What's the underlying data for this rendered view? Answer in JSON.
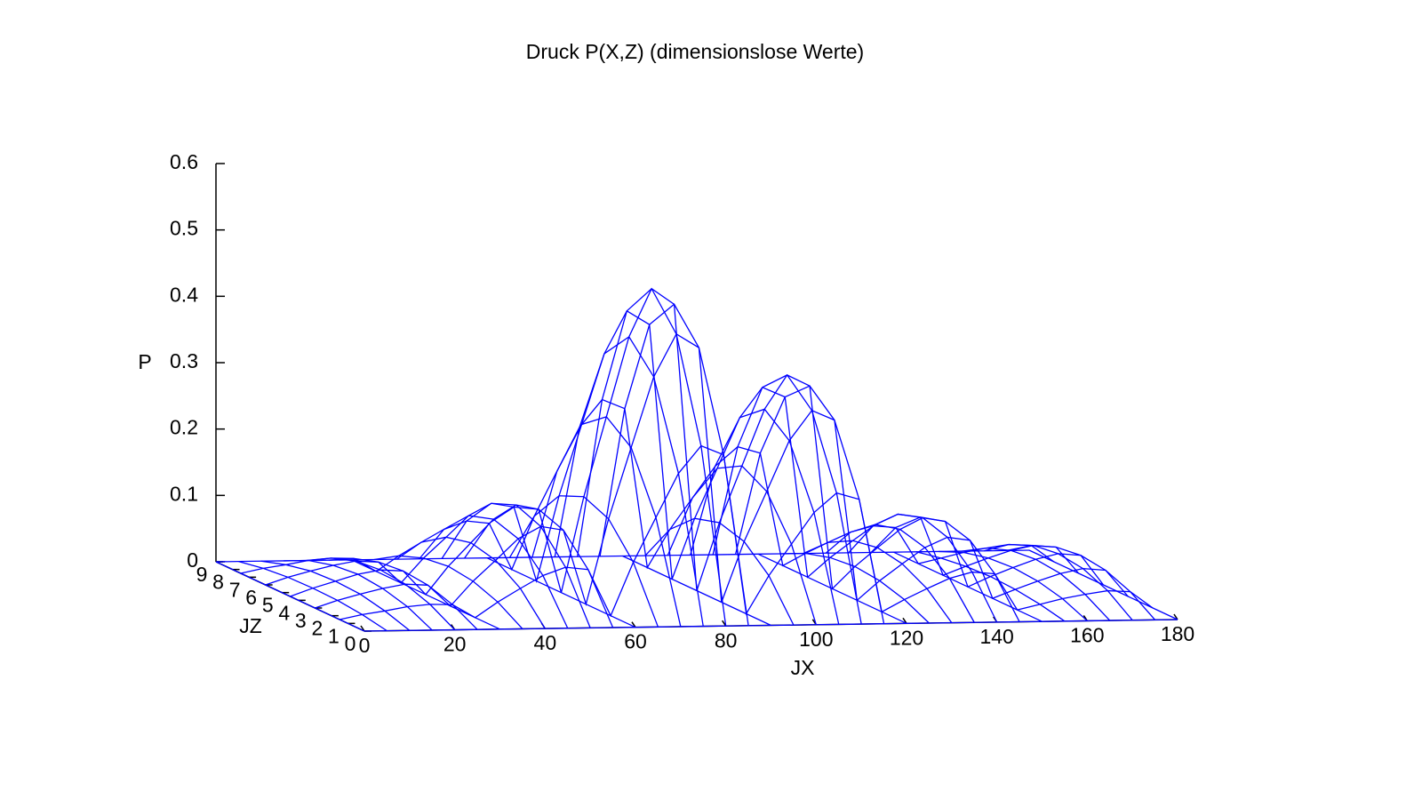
{
  "chart_data": {
    "type": "surface",
    "title": "Druck P(X,Z) (dimensionslose Werte)",
    "xlabel": "JX",
    "ylabel": "P",
    "zlabel": "JZ",
    "color": "#0000ff",
    "xlim": [
      0,
      180
    ],
    "ylim": [
      0,
      0.6
    ],
    "zlim": [
      0,
      9
    ],
    "xticks": [
      0,
      20,
      40,
      60,
      80,
      100,
      120,
      140,
      160,
      180
    ],
    "yticks": [
      0,
      0.1,
      0.2,
      0.3,
      0.4,
      0.5,
      0.6
    ],
    "zticks": [
      0,
      1,
      2,
      3,
      4,
      5,
      6,
      7,
      8,
      9
    ],
    "x": [
      0,
      5,
      10,
      15,
      20,
      25,
      30,
      35,
      40,
      45,
      50,
      55,
      60,
      65,
      70,
      75,
      80,
      85,
      90,
      95,
      100,
      105,
      110,
      115,
      120,
      125,
      130,
      135,
      140,
      145,
      150,
      155,
      160,
      165,
      170,
      175,
      180
    ],
    "z": [
      0,
      1.5,
      3,
      4.5,
      6,
      7.5,
      9
    ],
    "values": [
      [
        0,
        0,
        0,
        0,
        0,
        0,
        0,
        0,
        0,
        0,
        0,
        0,
        0,
        0,
        0,
        0,
        0,
        0,
        0,
        0,
        0,
        0,
        0,
        0,
        0,
        0,
        0,
        0,
        0,
        0,
        0,
        0,
        0,
        0,
        0,
        0,
        0
      ],
      [
        0,
        0.007,
        0.012,
        0.018,
        0.021,
        0.02,
        0,
        0.023,
        0.043,
        0.062,
        0.074,
        0.07,
        0,
        0.08,
        0.147,
        0.213,
        0.254,
        0.24,
        0,
        0.057,
        0.104,
        0.151,
        0.18,
        0.17,
        0,
        0.018,
        0.034,
        0.049,
        0.058,
        0.055,
        0,
        0.008,
        0.016,
        0.022,
        0.027,
        0.025,
        0
      ],
      [
        0,
        0.011,
        0.02,
        0.028,
        0.034,
        0.032,
        0,
        0.037,
        0.068,
        0.1,
        0.118,
        0.112,
        0,
        0.128,
        0.235,
        0.341,
        0.405,
        0.384,
        0,
        0.091,
        0.166,
        0.242,
        0.287,
        0.272,
        0,
        0.029,
        0.054,
        0.078,
        0.093,
        0.088,
        0,
        0.013,
        0.025,
        0.036,
        0.043,
        0.04,
        0
      ],
      [
        0,
        0.012,
        0.022,
        0.032,
        0.038,
        0.036,
        0,
        0.042,
        0.077,
        0.112,
        0.133,
        0.126,
        0,
        0.144,
        0.264,
        0.384,
        0.456,
        0.432,
        0,
        0.102,
        0.187,
        0.272,
        0.323,
        0.306,
        0,
        0.033,
        0.061,
        0.088,
        0.105,
        0.099,
        0,
        0.015,
        0.028,
        0.04,
        0.048,
        0.045,
        0
      ],
      [
        0,
        0.011,
        0.02,
        0.028,
        0.034,
        0.032,
        0,
        0.037,
        0.068,
        0.1,
        0.118,
        0.112,
        0,
        0.128,
        0.235,
        0.341,
        0.405,
        0.384,
        0,
        0.091,
        0.166,
        0.242,
        0.287,
        0.272,
        0,
        0.029,
        0.054,
        0.078,
        0.093,
        0.088,
        0,
        0.013,
        0.025,
        0.036,
        0.043,
        0.04,
        0
      ],
      [
        0,
        0.007,
        0.012,
        0.018,
        0.021,
        0.02,
        0,
        0.023,
        0.043,
        0.062,
        0.074,
        0.07,
        0,
        0.08,
        0.147,
        0.213,
        0.254,
        0.24,
        0,
        0.057,
        0.104,
        0.151,
        0.18,
        0.17,
        0,
        0.018,
        0.034,
        0.049,
        0.058,
        0.055,
        0,
        0.008,
        0.016,
        0.022,
        0.027,
        0.025,
        0
      ],
      [
        0,
        0,
        0,
        0,
        0,
        0,
        0,
        0,
        0,
        0,
        0,
        0,
        0,
        0,
        0,
        0,
        0,
        0,
        0,
        0,
        0,
        0,
        0,
        0,
        0,
        0,
        0,
        0,
        0,
        0,
        0,
        0,
        0,
        0,
        0,
        0,
        0
      ]
    ]
  }
}
